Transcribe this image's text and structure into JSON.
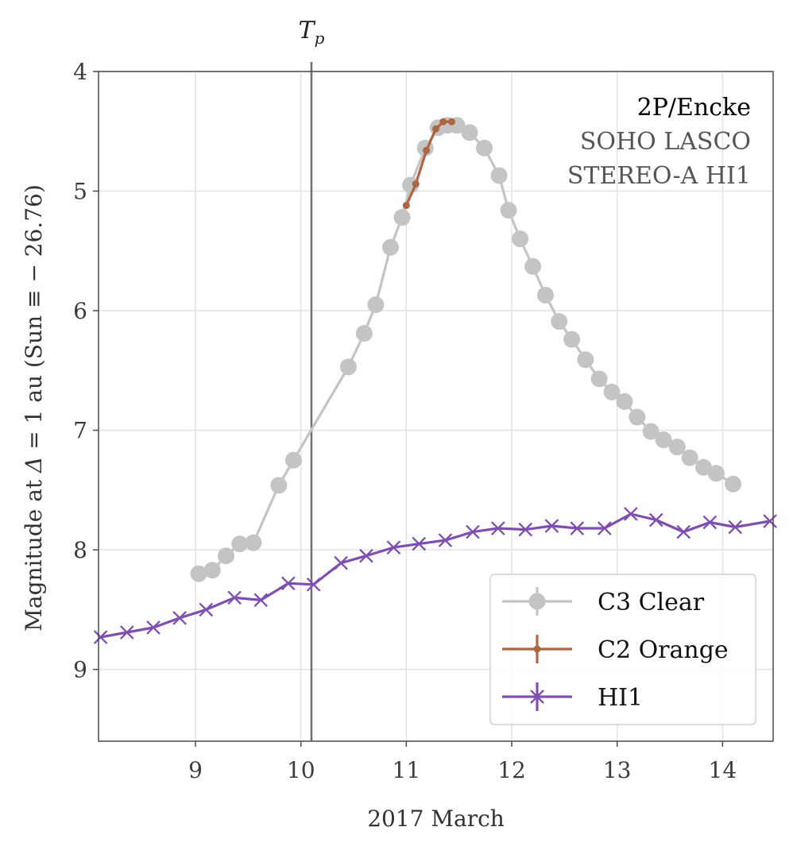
{
  "chart_data": {
    "type": "line",
    "title": "",
    "xlabel": "2017 March",
    "ylabel_prefix": "Magnitude at ",
    "ylabel_symbol": "Δ",
    "ylabel_suffix": " = 1 au (Sun ≡ − 26.76)",
    "xlim": [
      8.08,
      14.48
    ],
    "ylim": [
      4.0,
      9.6
    ],
    "y_inverted": true,
    "x_ticks": [
      9,
      10,
      11,
      12,
      13,
      14
    ],
    "y_ticks": [
      4,
      5,
      6,
      7,
      8,
      9
    ],
    "grid": true,
    "vline": {
      "x": 10.1,
      "label_base": "T",
      "label_sub": "p",
      "color": "#707070"
    },
    "annotations": [
      {
        "text": "2P/Encke",
        "color": "#000000"
      },
      {
        "text": "SOHO LASCO",
        "color": "#555555"
      },
      {
        "text": "STEREO-A HI1",
        "color": "#555555"
      }
    ],
    "legend_position": "lower-right",
    "series": [
      {
        "name": "C3 Clear",
        "color": "#c4c4c4",
        "marker": "circle",
        "x": [
          9.03,
          9.16,
          9.29,
          9.42,
          9.55,
          9.79,
          9.93,
          10.45,
          10.6,
          10.71,
          10.85,
          10.96,
          11.04,
          11.18,
          11.3,
          11.39,
          11.48,
          11.6,
          11.74,
          11.88,
          11.97,
          12.08,
          12.2,
          12.32,
          12.45,
          12.57,
          12.7,
          12.83,
          12.95,
          13.07,
          13.19,
          13.32,
          13.44,
          13.57,
          13.69,
          13.82,
          13.94,
          14.1
        ],
        "y": [
          8.2,
          8.17,
          8.05,
          7.95,
          7.94,
          7.46,
          7.25,
          6.47,
          6.19,
          5.95,
          5.47,
          5.22,
          4.95,
          4.64,
          4.47,
          4.45,
          4.45,
          4.51,
          4.64,
          4.87,
          5.16,
          5.4,
          5.63,
          5.87,
          6.09,
          6.24,
          6.41,
          6.57,
          6.68,
          6.76,
          6.89,
          7.01,
          7.08,
          7.14,
          7.23,
          7.31,
          7.36,
          7.45
        ]
      },
      {
        "name": "C2 Orange",
        "color": "#ad6542",
        "marker": "dot",
        "x": [
          11.0,
          11.09,
          11.19,
          11.28,
          11.35,
          11.43
        ],
        "y": [
          5.12,
          4.94,
          4.66,
          4.48,
          4.42,
          4.42
        ]
      },
      {
        "name": "HI1",
        "color": "#7e4fae",
        "marker": "x",
        "x": [
          8.1,
          8.35,
          8.6,
          8.85,
          9.1,
          9.37,
          9.62,
          9.88,
          10.12,
          10.38,
          10.62,
          10.88,
          11.12,
          11.37,
          11.63,
          11.87,
          12.13,
          12.38,
          12.62,
          12.88,
          13.13,
          13.37,
          13.63,
          13.88,
          14.12,
          14.45
        ],
        "y": [
          8.73,
          8.69,
          8.65,
          8.57,
          8.5,
          8.4,
          8.42,
          8.28,
          8.29,
          8.11,
          8.05,
          7.98,
          7.95,
          7.92,
          7.85,
          7.82,
          7.83,
          7.8,
          7.82,
          7.82,
          7.7,
          7.75,
          7.85,
          7.77,
          7.81,
          7.76
        ]
      }
    ]
  }
}
